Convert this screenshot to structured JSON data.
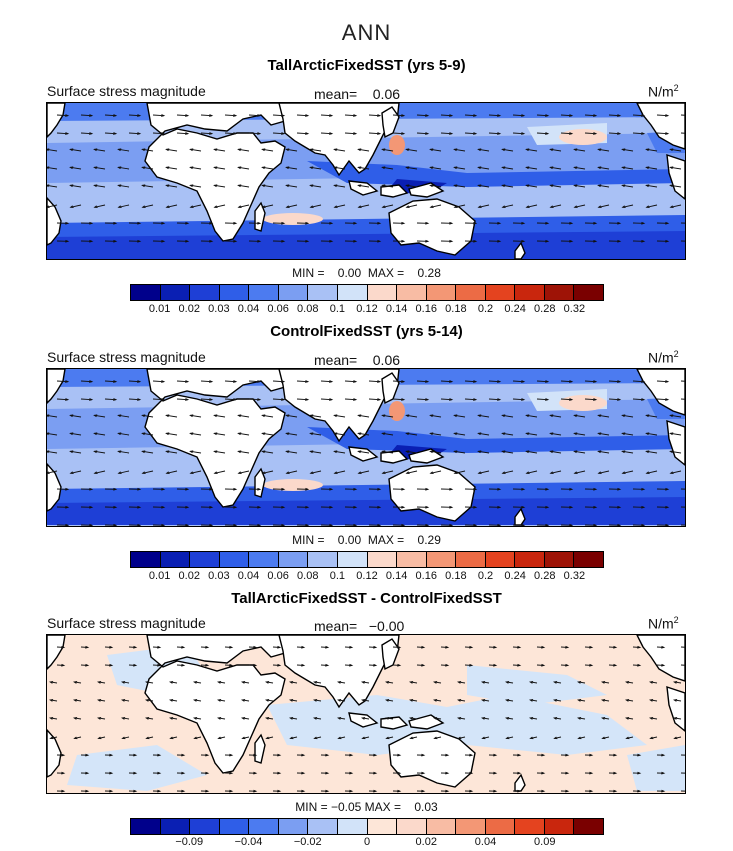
{
  "title": "ANN",
  "units_base": "N/m",
  "units_exp": "2",
  "colors": {
    "land": "#ffffff",
    "coast": "#000000",
    "arrow": "#111111"
  },
  "panels": [
    {
      "id": "tall",
      "title": "TallArcticFixedSST (yrs 5-9)",
      "variable": "Surface stress magnitude",
      "mean_label": "mean=",
      "mean_value": "0.06",
      "min_label": "MIN =",
      "min_value": "0.00",
      "max_label": "MAX =",
      "max_value": "0.28",
      "colorbar": {
        "colors": [
          "#00008b",
          "#0a1fb3",
          "#1e3fd6",
          "#2f5ee8",
          "#4c7bf0",
          "#7b9ef2",
          "#a9c1f5",
          "#d2e3f9",
          "#fbd9cb",
          "#f8bca4",
          "#f39775",
          "#ec6b45",
          "#e4431f",
          "#c9260d",
          "#9e1306",
          "#7a0000"
        ],
        "ticks": [
          "0.01",
          "0.02",
          "0.03",
          "0.04",
          "0.06",
          "0.08",
          "0.1",
          "0.12",
          "0.14",
          "0.16",
          "0.18",
          "0.2",
          "0.24",
          "0.28",
          "0.32"
        ]
      }
    },
    {
      "id": "control",
      "title": "ControlFixedSST (yrs 5-14)",
      "variable": "Surface stress magnitude",
      "mean_label": "mean=",
      "mean_value": "0.06",
      "min_label": "MIN =",
      "min_value": "0.00",
      "max_label": "MAX =",
      "max_value": "0.29",
      "colorbar": {
        "colors": [
          "#00008b",
          "#0a1fb3",
          "#1e3fd6",
          "#2f5ee8",
          "#4c7bf0",
          "#7b9ef2",
          "#a9c1f5",
          "#d2e3f9",
          "#fbd9cb",
          "#f8bca4",
          "#f39775",
          "#ec6b45",
          "#e4431f",
          "#c9260d",
          "#9e1306",
          "#7a0000"
        ],
        "ticks": [
          "0.01",
          "0.02",
          "0.03",
          "0.04",
          "0.06",
          "0.08",
          "0.1",
          "0.12",
          "0.14",
          "0.16",
          "0.18",
          "0.2",
          "0.24",
          "0.28",
          "0.32"
        ]
      }
    },
    {
      "id": "diff",
      "title": "TallArcticFixedSST - ControlFixedSST",
      "variable": "Surface stress magnitude",
      "mean_label": "mean=",
      "mean_value": "−0.00",
      "min_label": "MIN =",
      "min_value": "−0.05",
      "max_label": "MAX =",
      "max_value": "0.03",
      "colorbar": {
        "colors": [
          "#00008b",
          "#0a1fb3",
          "#1e3fd6",
          "#2f5ee8",
          "#4c7bf0",
          "#7b9ef2",
          "#a9c1f5",
          "#d2e3f9",
          "#fde6d8",
          "#fbd9cb",
          "#f8bca4",
          "#f39775",
          "#ec6b45",
          "#e4431f",
          "#c9260d",
          "#7a0000"
        ],
        "ticks": [
          "",
          "−0.09",
          "",
          "−0.04",
          "",
          "−0.02",
          "",
          "0",
          "",
          "0.02",
          "",
          "0.04",
          "",
          "0.09",
          ""
        ]
      }
    }
  ]
}
